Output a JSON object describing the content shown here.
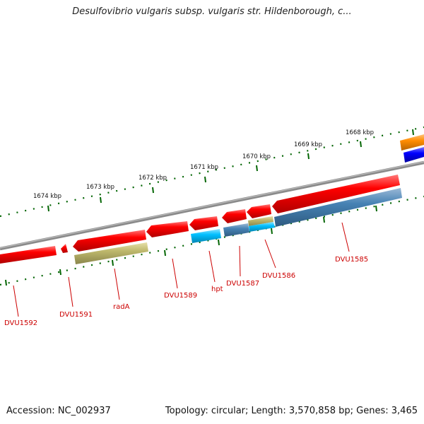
{
  "title": "Desulfovibrio vulgaris subsp. vulgaris str. Hildenborough, c...",
  "footer": {
    "accession": "Accession: NC_002937",
    "topology": "Topology: circular; Length: 3,570,858 bp; Genes: 3,465"
  },
  "scale_labels": [
    "1674 kbp",
    "1673 kbp",
    "1672 kbp",
    "1671 kbp",
    "1670 kbp",
    "1669 kbp",
    "1668 kbp"
  ],
  "gene_labels": [
    "DVU1592",
    "DVU1591",
    "radA",
    "DVU1589",
    "hpt",
    "DVU1587",
    "DVU1586",
    "DVU1585"
  ],
  "colors": {
    "backbone": "#808080",
    "gene_red": "#ff0000",
    "gene_khaki": "#bdb76b",
    "gene_cyan": "#00bfff",
    "gene_steel": "#4682b4",
    "gene_orange": "#ff8c00",
    "gene_blue": "#0000ff",
    "scale_ticks": "#006400",
    "label_red": "#cc0000"
  }
}
